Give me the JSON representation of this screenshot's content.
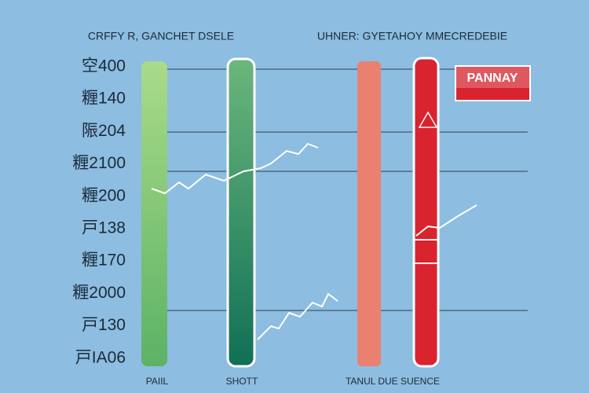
{
  "header": {
    "left_title": "CRFFY R, GANCHET DSELE",
    "right_title": "UHNER: GYETAHOY MMECREDEBIE"
  },
  "axis_labels": [
    "空400",
    "糎140",
    "陙204",
    "糎2100",
    "糎200",
    "戸138",
    "糎170",
    "糎2000",
    "戸130",
    "戸IA06"
  ],
  "badge": "PANNAY",
  "footer": {
    "left_label": "PAIIL",
    "middle_label": "SHOTT",
    "right_label": "TANUL DUE SUENCE"
  }
}
